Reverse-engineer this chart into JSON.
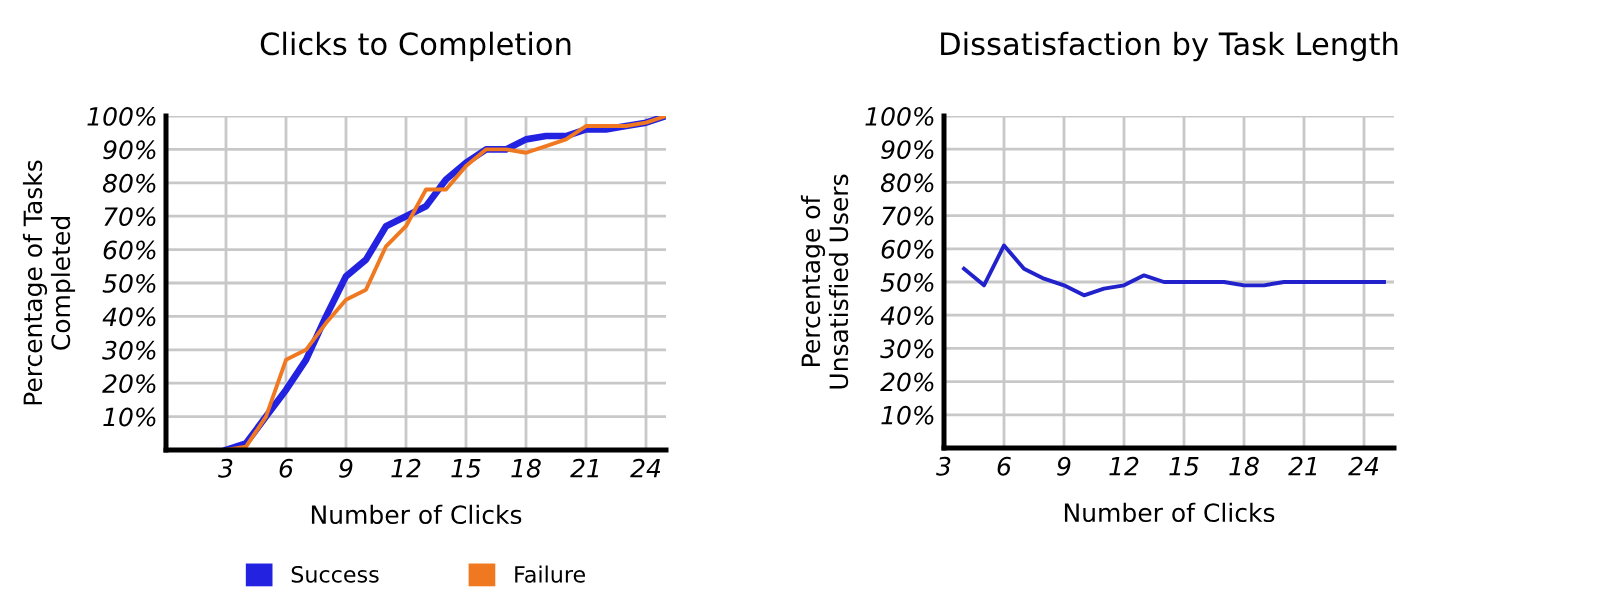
{
  "chart_data": [
    {
      "type": "line",
      "title": "Clicks to Completion",
      "xlabel": "Number of Clicks",
      "ylabel": "Percentage of Tasks\nCompleted",
      "x": [
        3,
        4,
        5,
        6,
        7,
        8,
        9,
        10,
        11,
        12,
        13,
        14,
        15,
        16,
        17,
        18,
        19,
        20,
        21,
        22,
        23,
        24,
        25
      ],
      "series": [
        {
          "name": "Success",
          "color": "#2222e0",
          "values": [
            0,
            2,
            10,
            18,
            27,
            40,
            52,
            57,
            67,
            70,
            73,
            81,
            86,
            90,
            90,
            93,
            94,
            94,
            96,
            96,
            97,
            98,
            100
          ]
        },
        {
          "name": "Failure",
          "color": "#f07820",
          "values": [
            0,
            1,
            10,
            27,
            30,
            38,
            45,
            48,
            61,
            67,
            78,
            78,
            85,
            90,
            90,
            89,
            91,
            93,
            97,
            97,
            97,
            98,
            100
          ]
        }
      ],
      "xlim": [
        0,
        25
      ],
      "xticks": [
        3,
        6,
        9,
        12,
        15,
        18,
        21,
        24
      ],
      "ylim": [
        0,
        100
      ],
      "yticks": [
        {
          "value": 0,
          "label": null
        },
        {
          "value": 10,
          "label": "10%"
        },
        {
          "value": 20,
          "label": "20%"
        },
        {
          "value": 30,
          "label": "30%"
        },
        {
          "value": 40,
          "label": "40%"
        },
        {
          "value": 50,
          "label": "50%"
        },
        {
          "value": 60,
          "label": "60%"
        },
        {
          "value": 70,
          "label": "70%"
        },
        {
          "value": 80,
          "label": "80%"
        },
        {
          "value": 90,
          "label": "90%"
        },
        {
          "value": 100,
          "label": "100%"
        }
      ],
      "grid": true,
      "legend": "bottom",
      "marker": "none",
      "line_style": "solid"
    },
    {
      "type": "line",
      "title": "Dissatisfaction by Task Length",
      "xlabel": "Number of Clicks",
      "ylabel": "Percentage of\nUnsatisfied Users",
      "x": [
        4,
        5,
        6,
        7,
        8,
        9,
        10,
        11,
        12,
        13,
        14,
        15,
        16,
        17,
        18,
        19,
        20,
        21,
        22,
        23,
        24,
        25
      ],
      "series": [
        {
          "color": "#2222cc",
          "values": [
            54,
            49,
            61,
            54,
            51,
            49,
            46,
            48,
            49,
            52,
            50,
            50,
            50,
            50,
            49,
            49,
            50,
            50,
            50,
            50,
            50,
            50
          ]
        }
      ],
      "xlim": [
        3,
        25.5
      ],
      "xticks": [
        3,
        6,
        9,
        12,
        15,
        18,
        21,
        24
      ],
      "ylim": [
        0,
        100
      ],
      "yticks": [
        {
          "value": 0,
          "label": null
        },
        {
          "value": 10,
          "label": "10%"
        },
        {
          "value": 20,
          "label": "20%"
        },
        {
          "value": 30,
          "label": "30%"
        },
        {
          "value": 40,
          "label": "40%"
        },
        {
          "value": 50,
          "label": "50%"
        },
        {
          "value": 60,
          "label": "60%"
        },
        {
          "value": 70,
          "label": "70%"
        },
        {
          "value": 80,
          "label": "80%"
        },
        {
          "value": 90,
          "label": "90%"
        },
        {
          "value": 100,
          "label": "100%"
        }
      ],
      "grid": true,
      "marker": "none",
      "line_style": "solid"
    }
  ]
}
